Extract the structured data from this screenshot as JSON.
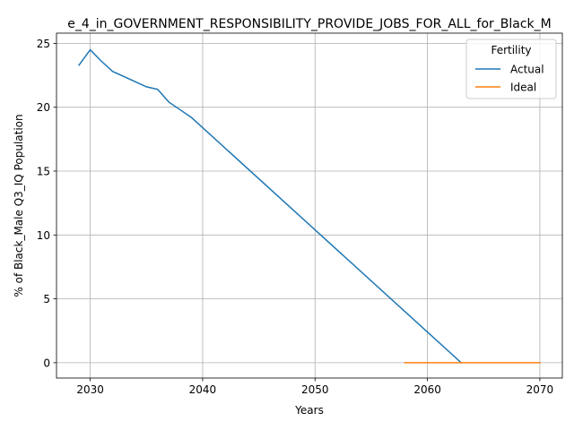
{
  "chart_data": {
    "type": "line",
    "title": "e_4_in_GOVERNMENT_RESPONSIBILITY_PROVIDE_JOBS_FOR_ALL_for_Black_M",
    "xlabel": "Years",
    "ylabel": "% of Black_Male Q3_IQ Population",
    "xlim": [
      2027,
      2072
    ],
    "ylim": [
      -1.2,
      25.8
    ],
    "xticks": [
      2030,
      2040,
      2050,
      2060,
      2070
    ],
    "yticks": [
      0,
      5,
      10,
      15,
      20,
      25
    ],
    "grid": true,
    "legend": {
      "title": "Fertility",
      "placement": "top-right"
    },
    "series": [
      {
        "name": "Actual",
        "color": "#1f77b4",
        "x": [
          2029,
          2030,
          2031,
          2032,
          2033,
          2034,
          2035,
          2036,
          2037,
          2038,
          2039,
          2063
        ],
        "y": [
          23.3,
          24.5,
          23.6,
          22.8,
          22.4,
          22.0,
          21.6,
          21.4,
          20.4,
          19.8,
          19.2,
          0.0
        ]
      },
      {
        "name": "Ideal",
        "color": "#ff7f0e",
        "x": [
          2058,
          2070
        ],
        "y": [
          0.0,
          0.0
        ]
      }
    ]
  }
}
